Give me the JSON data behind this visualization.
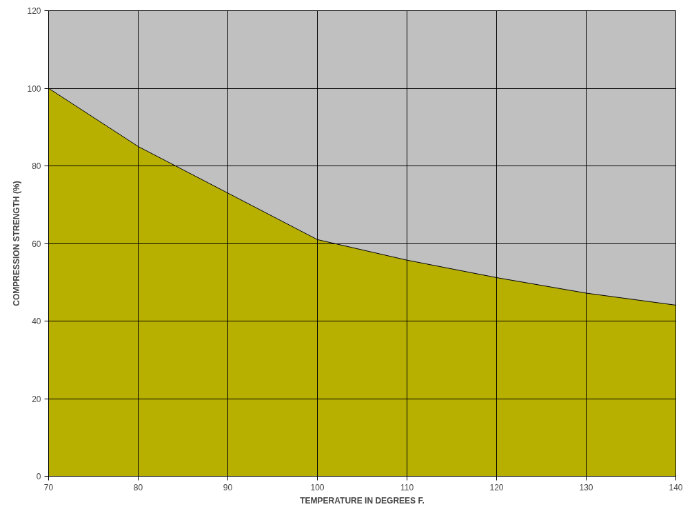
{
  "chart_data": {
    "type": "area",
    "xlabel": "TEMPERATURE IN DEGREES F.",
    "ylabel": "COMPRESSION STRENGTH (%)",
    "x": [
      70,
      80,
      90,
      100,
      110,
      120,
      130,
      140
    ],
    "series": [
      {
        "color": "#b8b000",
        "values": [
          100,
          85,
          73,
          61,
          55.7,
          51.2,
          47.2,
          44.1
        ]
      }
    ],
    "xlim": [
      70,
      140
    ],
    "xticks": [
      70,
      80,
      90,
      100,
      110,
      120,
      130,
      140
    ],
    "ylim": [
      0,
      120
    ],
    "yticks": [
      0,
      20,
      40,
      60,
      80,
      100,
      120
    ],
    "grid": true
  }
}
